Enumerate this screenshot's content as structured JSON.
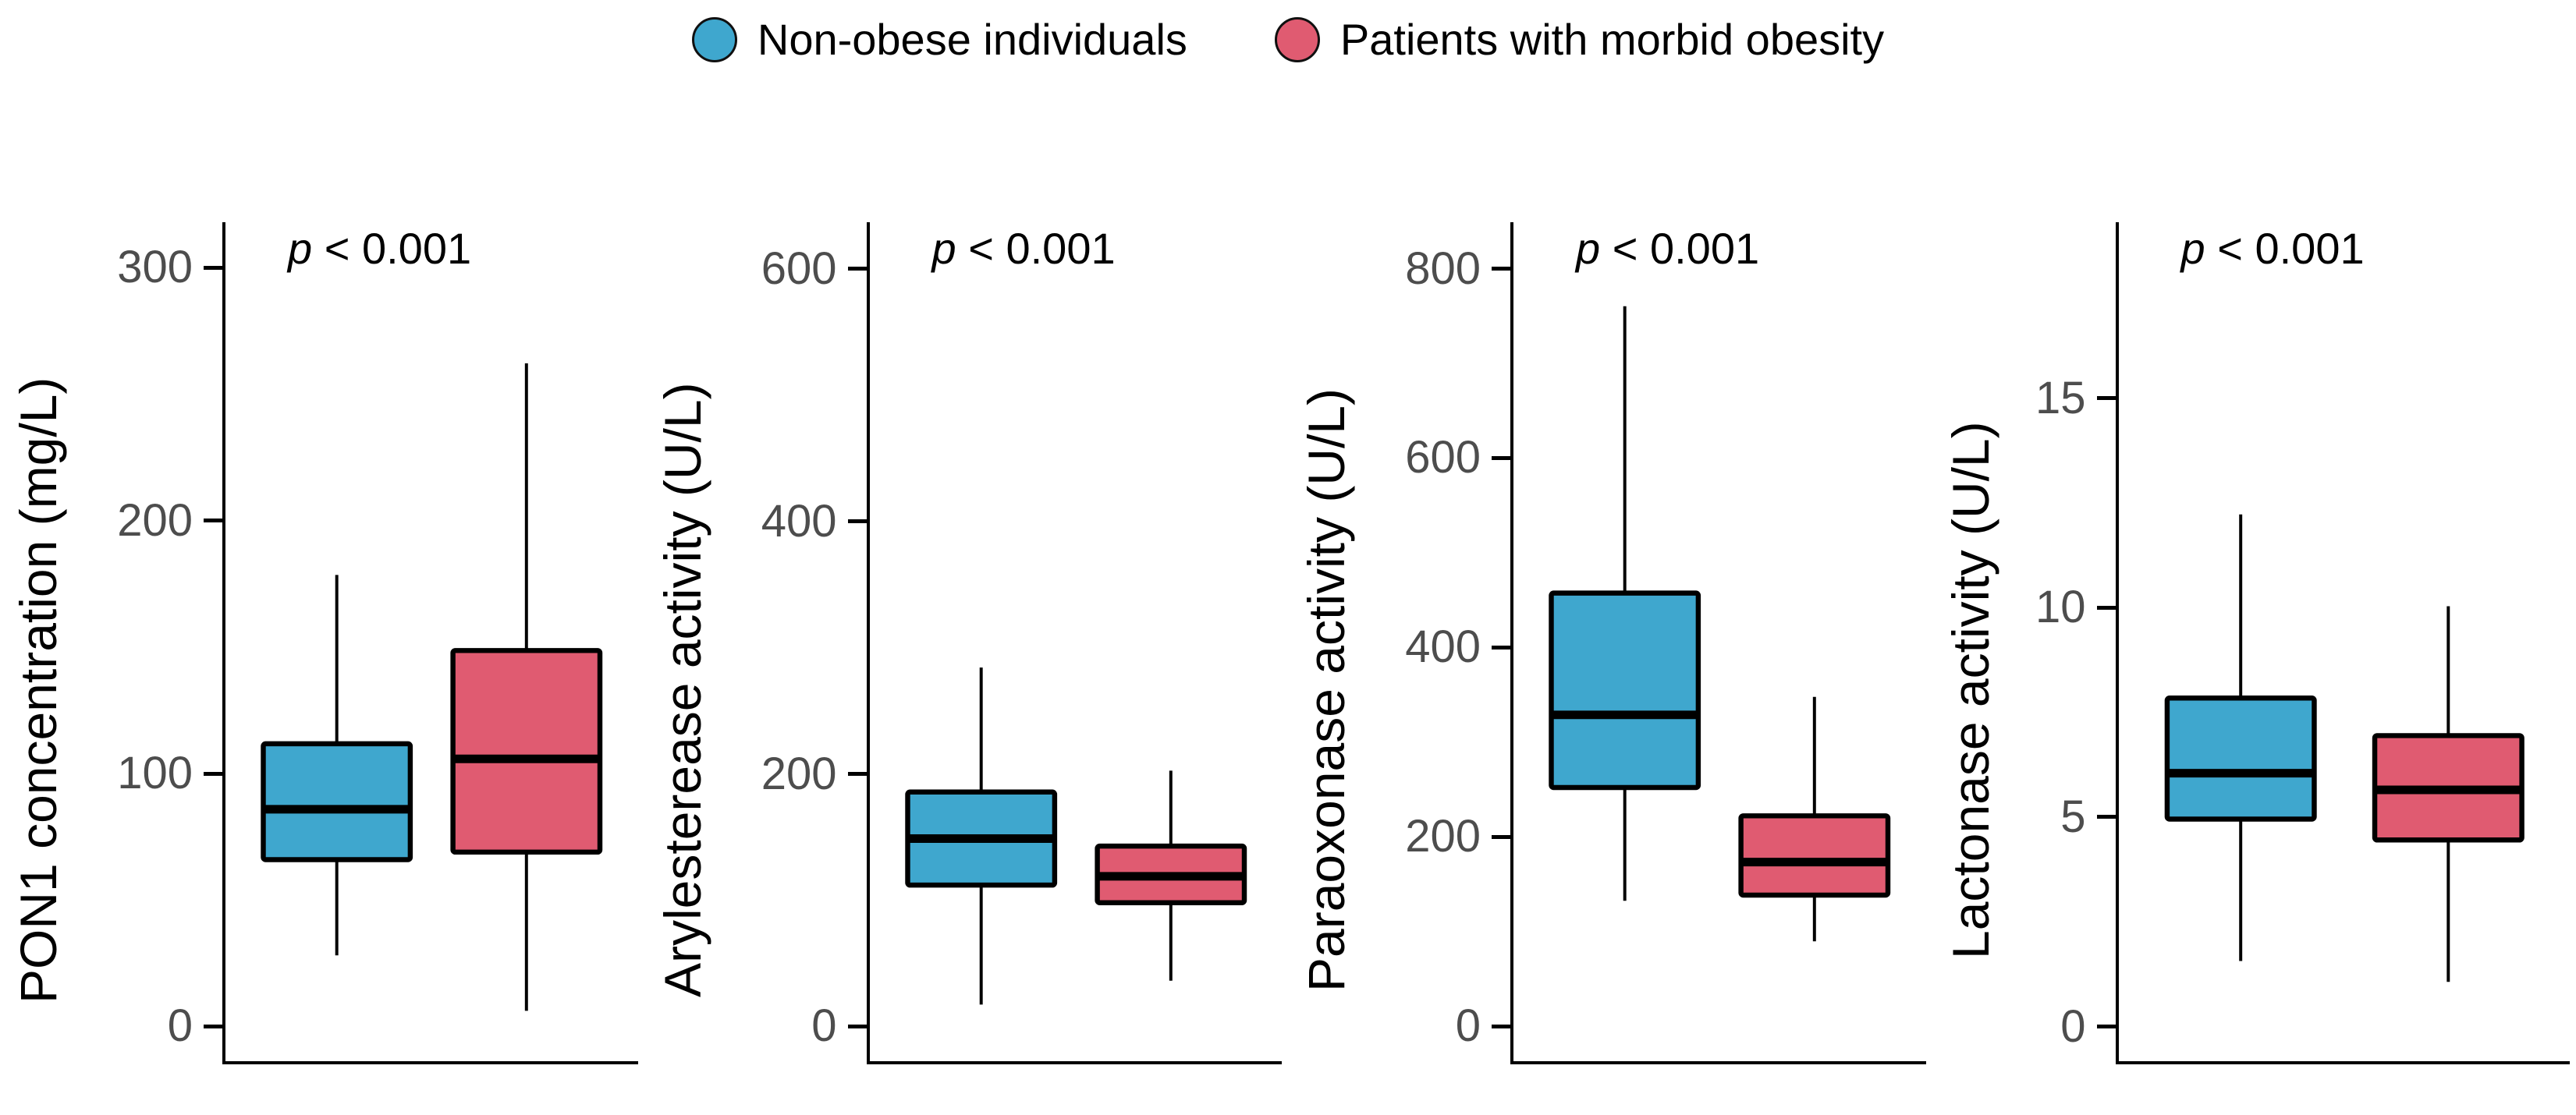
{
  "legend": {
    "position": "top",
    "items": [
      {
        "label": "Non-obese individuals",
        "color": "#3FA7CE"
      },
      {
        "label": "Patients with morbid obesity",
        "color": "#E05B71"
      }
    ]
  },
  "p_annotation": {
    "italic": "p",
    "rest": " < 0.001"
  },
  "styles": {
    "background": "#ffffff",
    "box_border": "#000000",
    "axis_color": "#000000",
    "tick_label_color": "#4d4d4d",
    "blue": "#3FA7CE",
    "red": "#E05B71"
  },
  "chart_data": [
    {
      "type": "box",
      "ylabel": "PON1 concentration (mg/L)",
      "p_label": "p < 0.001",
      "yticks": [
        0,
        100,
        200,
        300
      ],
      "ydomain": [
        -15,
        318
      ],
      "grid": false,
      "series": [
        {
          "name": "Non-obese individuals",
          "color": "#3FA7CE",
          "whislo": 27,
          "q1": 65,
          "med": 85,
          "q3": 111,
          "whishi": 178
        },
        {
          "name": "Patients with morbid obesity",
          "color": "#E05B71",
          "whislo": 5,
          "q1": 68,
          "med": 105,
          "q3": 148,
          "whishi": 262
        }
      ]
    },
    {
      "type": "box",
      "ylabel": "Arylesterease activity (U/L)",
      "p_label": "p < 0.001",
      "yticks": [
        0,
        200,
        400,
        600
      ],
      "ydomain": [
        -30,
        637
      ],
      "grid": false,
      "series": [
        {
          "name": "Non-obese individuals",
          "color": "#3FA7CE",
          "whislo": 15,
          "q1": 110,
          "med": 147,
          "q3": 184,
          "whishi": 283
        },
        {
          "name": "Patients with morbid obesity",
          "color": "#E05B71",
          "whislo": 34,
          "q1": 96,
          "med": 117,
          "q3": 141,
          "whishi": 201
        }
      ]
    },
    {
      "type": "box",
      "ylabel": "Paraoxonase activity (U/L)",
      "p_label": "p < 0.001",
      "yticks": [
        0,
        200,
        400,
        600,
        800
      ],
      "ydomain": [
        -40,
        849
      ],
      "grid": false,
      "series": [
        {
          "name": "Non-obese individuals",
          "color": "#3FA7CE",
          "whislo": 130,
          "q1": 250,
          "med": 327,
          "q3": 456,
          "whishi": 760
        },
        {
          "name": "Patients with morbid obesity",
          "color": "#E05B71",
          "whislo": 87,
          "q1": 136,
          "med": 171,
          "q3": 220,
          "whishi": 346
        }
      ]
    },
    {
      "type": "box",
      "ylabel": "Lactonase activity (U/L)",
      "p_label": "p < 0.001",
      "yticks": [
        0,
        5,
        10,
        15
      ],
      "ydomain": [
        -0.9,
        19.2
      ],
      "grid": false,
      "series": [
        {
          "name": "Non-obese individuals",
          "color": "#3FA7CE",
          "whislo": 1.5,
          "q1": 4.9,
          "med": 6.0,
          "q3": 7.8,
          "whishi": 12.2
        },
        {
          "name": "Patients with morbid obesity",
          "color": "#E05B71",
          "whislo": 1.0,
          "q1": 4.4,
          "med": 5.6,
          "q3": 6.9,
          "whishi": 10.0
        }
      ]
    }
  ]
}
